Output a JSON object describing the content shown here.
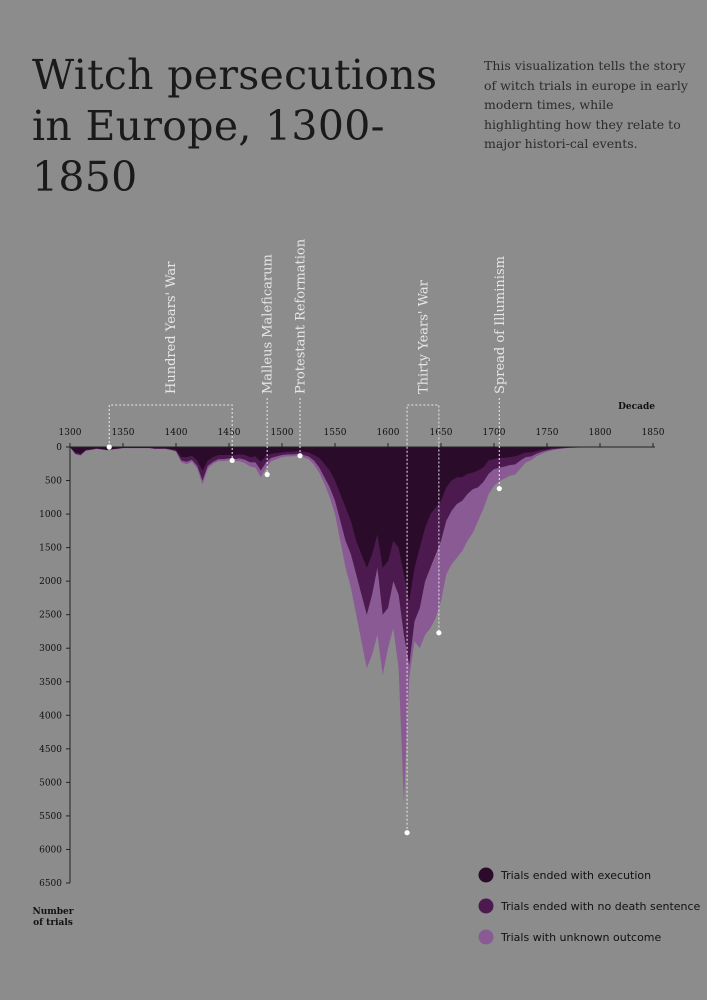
{
  "header": {
    "title": "Witch persecutions in Europe, 1300-1850",
    "subtitle": "This visualization tells the story of witch trials in europe in early modern times, while highlighting how they relate to major histori-cal events."
  },
  "colors": {
    "background": "#8c8c8c",
    "execution": "#2a0b2a",
    "no_death": "#4c1a4e",
    "unknown": "#8a5a95",
    "annotation": "#e8e8e8"
  },
  "chart_data": {
    "type": "area",
    "stacked": true,
    "orientation": "inverted-y (values grow downward from the top axis)",
    "x_axis": {
      "label": "Decade",
      "range": [
        1300,
        1850
      ],
      "ticks": [
        1300,
        1350,
        1400,
        1450,
        1500,
        1550,
        1600,
        1650,
        1700,
        1750,
        1800,
        1850
      ]
    },
    "y_axis": {
      "label": "Number of trials",
      "range": [
        0,
        6500
      ],
      "ticks": [
        0,
        500,
        1000,
        1500,
        2000,
        2500,
        3000,
        3500,
        4000,
        4500,
        5000,
        5500,
        6000,
        6500
      ]
    },
    "grid": false,
    "legend_position": "bottom-right",
    "x": [
      1300,
      1305,
      1310,
      1315,
      1320,
      1325,
      1330,
      1335,
      1340,
      1345,
      1350,
      1355,
      1360,
      1365,
      1370,
      1375,
      1380,
      1385,
      1390,
      1395,
      1400,
      1405,
      1410,
      1415,
      1420,
      1425,
      1430,
      1435,
      1440,
      1445,
      1450,
      1455,
      1460,
      1465,
      1470,
      1475,
      1480,
      1485,
      1490,
      1495,
      1500,
      1505,
      1510,
      1515,
      1520,
      1525,
      1530,
      1535,
      1540,
      1545,
      1550,
      1555,
      1560,
      1565,
      1570,
      1575,
      1580,
      1585,
      1590,
      1595,
      1600,
      1605,
      1610,
      1615,
      1620,
      1625,
      1630,
      1635,
      1640,
      1645,
      1650,
      1655,
      1660,
      1665,
      1670,
      1675,
      1680,
      1685,
      1690,
      1695,
      1700,
      1705,
      1710,
      1715,
      1720,
      1725,
      1730,
      1735,
      1740,
      1745,
      1750,
      1755,
      1760,
      1765,
      1770,
      1775,
      1780,
      1790,
      1800,
      1810,
      1820,
      1830,
      1840,
      1850
    ],
    "series": [
      {
        "name": "Trials ended with execution",
        "color": "#2a0b2a",
        "values": [
          0,
          80,
          100,
          40,
          30,
          20,
          30,
          40,
          30,
          20,
          10,
          10,
          10,
          10,
          10,
          10,
          20,
          20,
          20,
          30,
          40,
          150,
          150,
          130,
          200,
          350,
          200,
          150,
          120,
          120,
          120,
          120,
          110,
          120,
          150,
          140,
          220,
          130,
          100,
          90,
          80,
          70,
          70,
          60,
          70,
          80,
          120,
          160,
          250,
          350,
          500,
          700,
          900,
          1100,
          1400,
          1600,
          1800,
          1600,
          1300,
          1800,
          1700,
          1400,
          1500,
          1900,
          2300,
          1800,
          1500,
          1200,
          1000,
          900,
          800,
          600,
          500,
          450,
          450,
          400,
          380,
          350,
          300,
          200,
          180,
          160,
          160,
          150,
          140,
          110,
          80,
          80,
          60,
          40,
          30,
          20,
          15,
          10,
          8,
          5,
          4,
          3,
          2,
          1,
          1,
          0,
          0,
          0
        ]
      },
      {
        "name": "Trials ended with no death sentence",
        "color": "#4c1a4e",
        "values": [
          0,
          20,
          20,
          10,
          10,
          5,
          5,
          5,
          5,
          5,
          5,
          5,
          5,
          5,
          5,
          5,
          5,
          5,
          5,
          10,
          20,
          50,
          70,
          60,
          80,
          150,
          80,
          70,
          60,
          60,
          50,
          60,
          60,
          70,
          80,
          90,
          130,
          100,
          60,
          50,
          40,
          40,
          40,
          40,
          50,
          60,
          80,
          140,
          200,
          250,
          300,
          400,
          500,
          500,
          500,
          600,
          700,
          600,
          500,
          700,
          700,
          600,
          700,
          900,
          950,
          800,
          900,
          800,
          800,
          700,
          600,
          500,
          450,
          400,
          350,
          300,
          250,
          250,
          220,
          200,
          150,
          150,
          130,
          120,
          120,
          90,
          70,
          60,
          40,
          30,
          20,
          15,
          10,
          8,
          5,
          4,
          3,
          2,
          1,
          1,
          0,
          0,
          0,
          0
        ]
      },
      {
        "name": "Trials with unknown outcome",
        "color": "#8a5a95",
        "values": [
          0,
          10,
          10,
          5,
          5,
          5,
          5,
          5,
          5,
          5,
          5,
          5,
          5,
          5,
          5,
          5,
          5,
          5,
          5,
          5,
          10,
          30,
          40,
          30,
          40,
          60,
          40,
          30,
          30,
          30,
          30,
          30,
          40,
          50,
          60,
          80,
          100,
          80,
          50,
          40,
          30,
          30,
          30,
          30,
          30,
          40,
          60,
          80,
          100,
          150,
          200,
          300,
          400,
          500,
          600,
          700,
          800,
          900,
          1000,
          900,
          600,
          700,
          1100,
          2500,
          200,
          300,
          600,
          800,
          900,
          950,
          900,
          800,
          800,
          800,
          750,
          700,
          650,
          500,
          400,
          300,
          250,
          200,
          180,
          160,
          150,
          120,
          80,
          60,
          40,
          30,
          20,
          15,
          10,
          5,
          4,
          3,
          2,
          1,
          1,
          0,
          0,
          0,
          0,
          0
        ]
      }
    ],
    "events": [
      {
        "label": "Hundred Years' War",
        "start": 1337,
        "end": 1453,
        "point_start": 0,
        "point_end": 200
      },
      {
        "label": "Malleus Maleficarum",
        "year": 1486,
        "point": 410
      },
      {
        "label": "Protestant Reformation",
        "year": 1517,
        "point": 130
      },
      {
        "label": "Thirty Years' War",
        "start": 1618,
        "end": 1648,
        "point_start": 5750,
        "point_end": 2770
      },
      {
        "label": "Spread of Illuminism",
        "year": 1705,
        "point": 620
      }
    ]
  }
}
